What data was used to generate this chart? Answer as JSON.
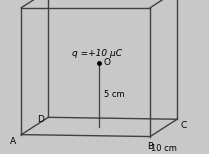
{
  "bg_color": "#c8c8c8",
  "cube_color": "#404040",
  "cube_lw": 1.0,
  "charge_label": "q =+10 μC",
  "o_label": "O",
  "dim_5cm": "5 cm",
  "dim_10cm": "10 cm",
  "font_size_labels": 6.5,
  "font_size_dims": 6.0,
  "font_size_charge": 6.5
}
